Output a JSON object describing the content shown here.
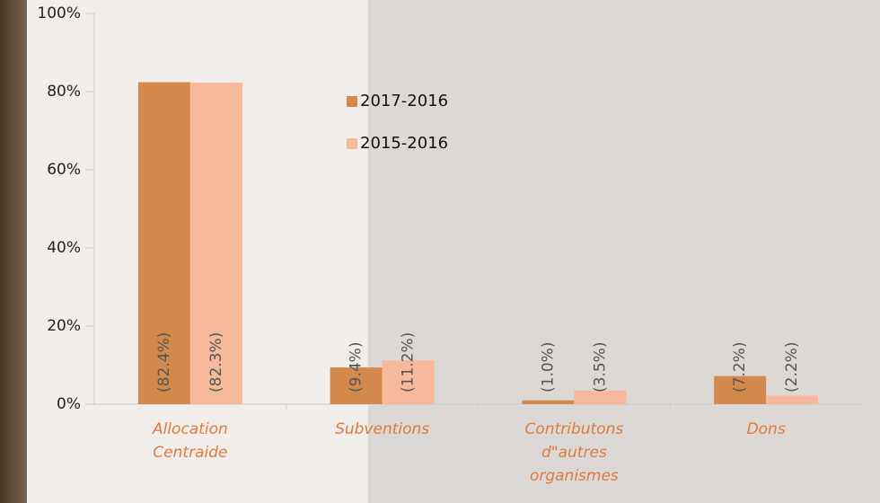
{
  "chart_data": {
    "type": "bar",
    "categories": [
      "Allocation Centraide",
      "Subventions",
      "Contributons d\"autres organismes",
      "Dons"
    ],
    "series": [
      {
        "name": "2017-2016",
        "color": "#d4894c",
        "values": [
          82.4,
          9.4,
          1.0,
          7.2
        ],
        "value_labels": [
          "(82.4%)",
          "(9.4%)",
          "(1.0%)",
          "(7.2%)"
        ]
      },
      {
        "name": "2015-2016",
        "color": "#f6b99c",
        "values": [
          82.3,
          11.2,
          3.5,
          2.2
        ],
        "value_labels": [
          "(82.3%)",
          "(11.2%)",
          "(3.5%)",
          "(2.2%)"
        ]
      }
    ],
    "ylim": [
      0,
      100
    ],
    "yticks": [
      {
        "value": 0,
        "label": "0%"
      },
      {
        "value": 20,
        "label": "20%"
      },
      {
        "value": 40,
        "label": "40%"
      },
      {
        "value": 60,
        "label": "60%"
      },
      {
        "value": 80,
        "label": "80%"
      },
      {
        "value": 100,
        "label": "100%"
      }
    ],
    "legend": "inside"
  }
}
